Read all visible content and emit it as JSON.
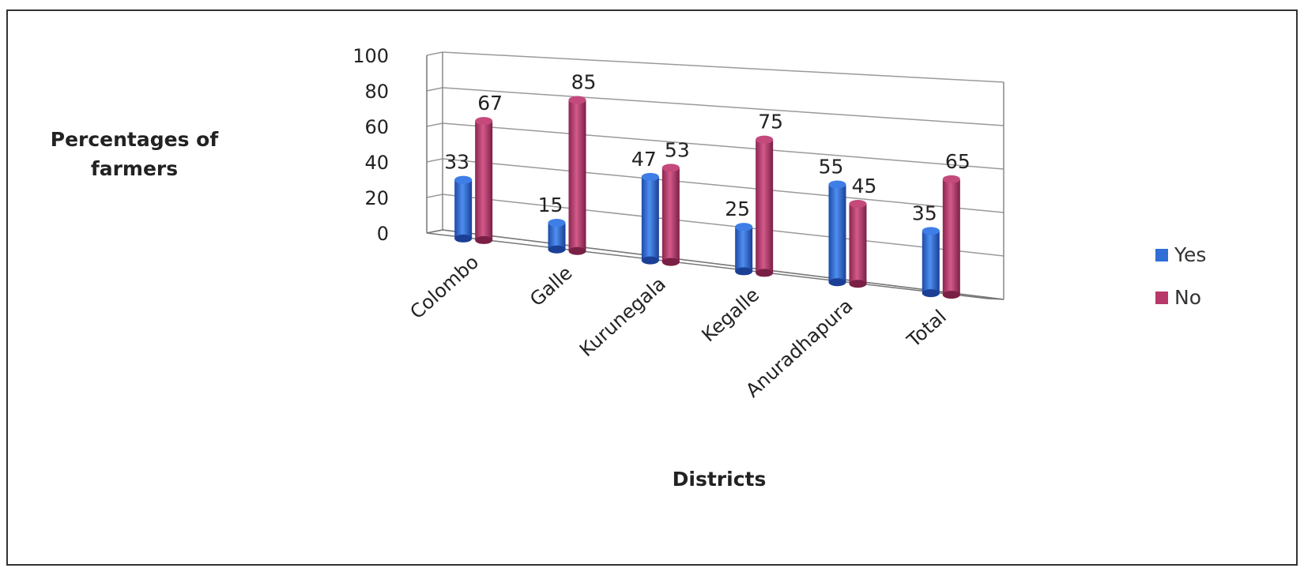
{
  "chart_data": {
    "type": "bar",
    "title": "",
    "xlabel": "Districts",
    "ylabel": "Percentages of\nfarmers",
    "ylim": [
      0,
      100
    ],
    "yticks": [
      0,
      20,
      40,
      60,
      80,
      100
    ],
    "categories": [
      "Colombo",
      "Galle",
      "Kurunegala",
      "Kegalle",
      "Anuradhapura",
      "Total"
    ],
    "series": [
      {
        "name": "Yes",
        "color": "#2f6fd6",
        "values": [
          33,
          15,
          47,
          25,
          55,
          35
        ]
      },
      {
        "name": "No",
        "color": "#b8386a",
        "values": [
          67,
          85,
          53,
          75,
          45,
          65
        ]
      }
    ],
    "grid": true,
    "legend_position": "right",
    "style": "3d-cylinder"
  }
}
